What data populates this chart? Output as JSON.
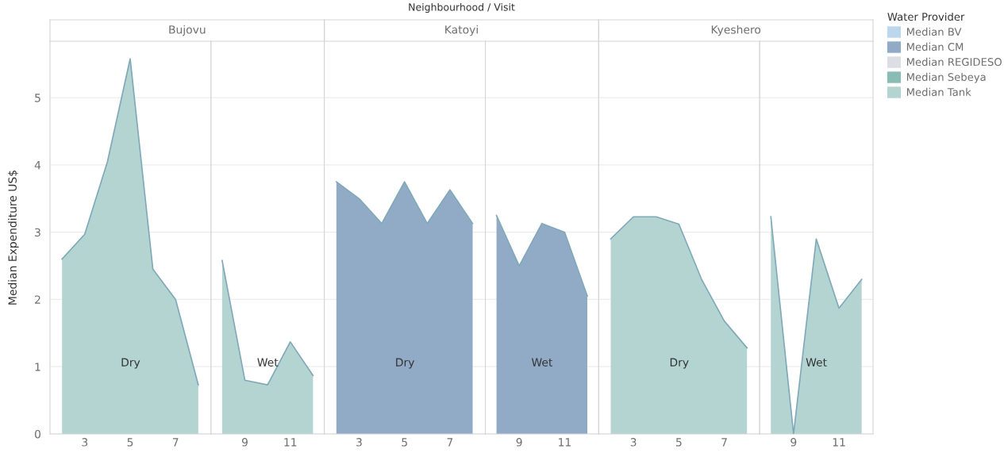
{
  "chart_data": [
    {
      "type": "area",
      "title": "Bujovu",
      "annotations": [
        "Neighbourhood / Visit",
        "Dry"
      ],
      "ylabel": "Median Expenditure US$",
      "legend_title": "Water Provider",
      "legend": "right",
      "x": [
        2,
        3,
        4,
        5,
        6,
        7,
        8
      ],
      "xlim": [
        1.47,
        8.56
      ],
      "xticks": [
        3,
        5,
        7
      ],
      "ylim": [
        0,
        5.84
      ],
      "yticks": [
        0,
        1,
        2,
        3,
        4,
        5
      ],
      "grid": "y",
      "series": [
        {
          "name": "Median BV",
          "color": "#bcd6ec",
          "values": [
            null,
            null,
            null,
            null,
            null,
            null,
            null
          ]
        },
        {
          "name": "Median CM",
          "color": "#91abc7",
          "values": [
            null,
            null,
            null,
            null,
            null,
            null,
            null
          ]
        },
        {
          "name": "Median REGIDESO",
          "color": "#dcdee3",
          "values": [
            null,
            null,
            null,
            null,
            null,
            null,
            null
          ]
        },
        {
          "name": "Median Sebeya",
          "color": "#88bcb4",
          "values": [
            null,
            null,
            null,
            null,
            null,
            null,
            null
          ]
        },
        {
          "name": "Median Tank",
          "color": "#b4d4d2",
          "values": [
            2.6,
            2.97,
            4.05,
            5.58,
            2.45,
            2.0,
            0.73
          ]
        }
      ]
    },
    {
      "type": "area",
      "annotations": [
        "Wet"
      ],
      "x": [
        8,
        9,
        10,
        11,
        12
      ],
      "xlim": [
        7.51,
        12.5
      ],
      "xticks": [
        9,
        11
      ],
      "ylim": [
        0,
        5.84
      ],
      "grid": "y",
      "tick_labels": "x",
      "series": [
        {
          "color": "#b4d4d2",
          "values": [
            2.58,
            0.8,
            0.73,
            1.37,
            0.87
          ]
        }
      ]
    },
    {
      "type": "area",
      "title": "Katoyi",
      "annotations": [
        "Dry"
      ],
      "x": [
        2,
        3,
        4,
        5,
        6,
        7,
        8
      ],
      "xlim": [
        1.47,
        8.56
      ],
      "xticks": [
        3,
        5,
        7
      ],
      "ylim": [
        0,
        5.84
      ],
      "grid": "y",
      "tick_labels": "x",
      "series": [
        {
          "color": "#91abc7",
          "values": [
            3.75,
            3.5,
            3.13,
            3.75,
            3.13,
            3.63,
            3.13
          ]
        }
      ]
    },
    {
      "type": "area",
      "annotations": [
        "Wet"
      ],
      "x": [
        8,
        9,
        10,
        11,
        12
      ],
      "xlim": [
        7.51,
        12.5
      ],
      "xticks": [
        9,
        11
      ],
      "ylim": [
        0,
        5.84
      ],
      "grid": "y",
      "tick_labels": "x",
      "series": [
        {
          "color": "#91abc7",
          "values": [
            3.25,
            2.5,
            3.13,
            3.0,
            2.05
          ]
        }
      ]
    },
    {
      "type": "area",
      "title": "Kyeshero",
      "annotations": [
        "Dry"
      ],
      "x": [
        2,
        3,
        4,
        5,
        6,
        7,
        8
      ],
      "xlim": [
        1.47,
        8.56
      ],
      "xticks": [
        3,
        5,
        7
      ],
      "ylim": [
        0,
        5.84
      ],
      "grid": "y",
      "tick_labels": "x",
      "series": [
        {
          "color": "#b4d4d2",
          "values": [
            2.9,
            3.23,
            3.23,
            3.12,
            2.3,
            1.68,
            1.28
          ]
        }
      ]
    },
    {
      "type": "area",
      "annotations": [
        "Wet"
      ],
      "x": [
        8,
        9,
        10,
        11,
        12
      ],
      "xlim": [
        7.51,
        12.5
      ],
      "xticks": [
        9,
        11
      ],
      "ylim": [
        0,
        5.84
      ],
      "grid": "y",
      "tick_labels": "x",
      "series": [
        {
          "color": "#b4d4d2",
          "values": [
            3.23,
            0.0,
            2.9,
            1.87,
            2.3
          ]
        }
      ]
    }
  ]
}
